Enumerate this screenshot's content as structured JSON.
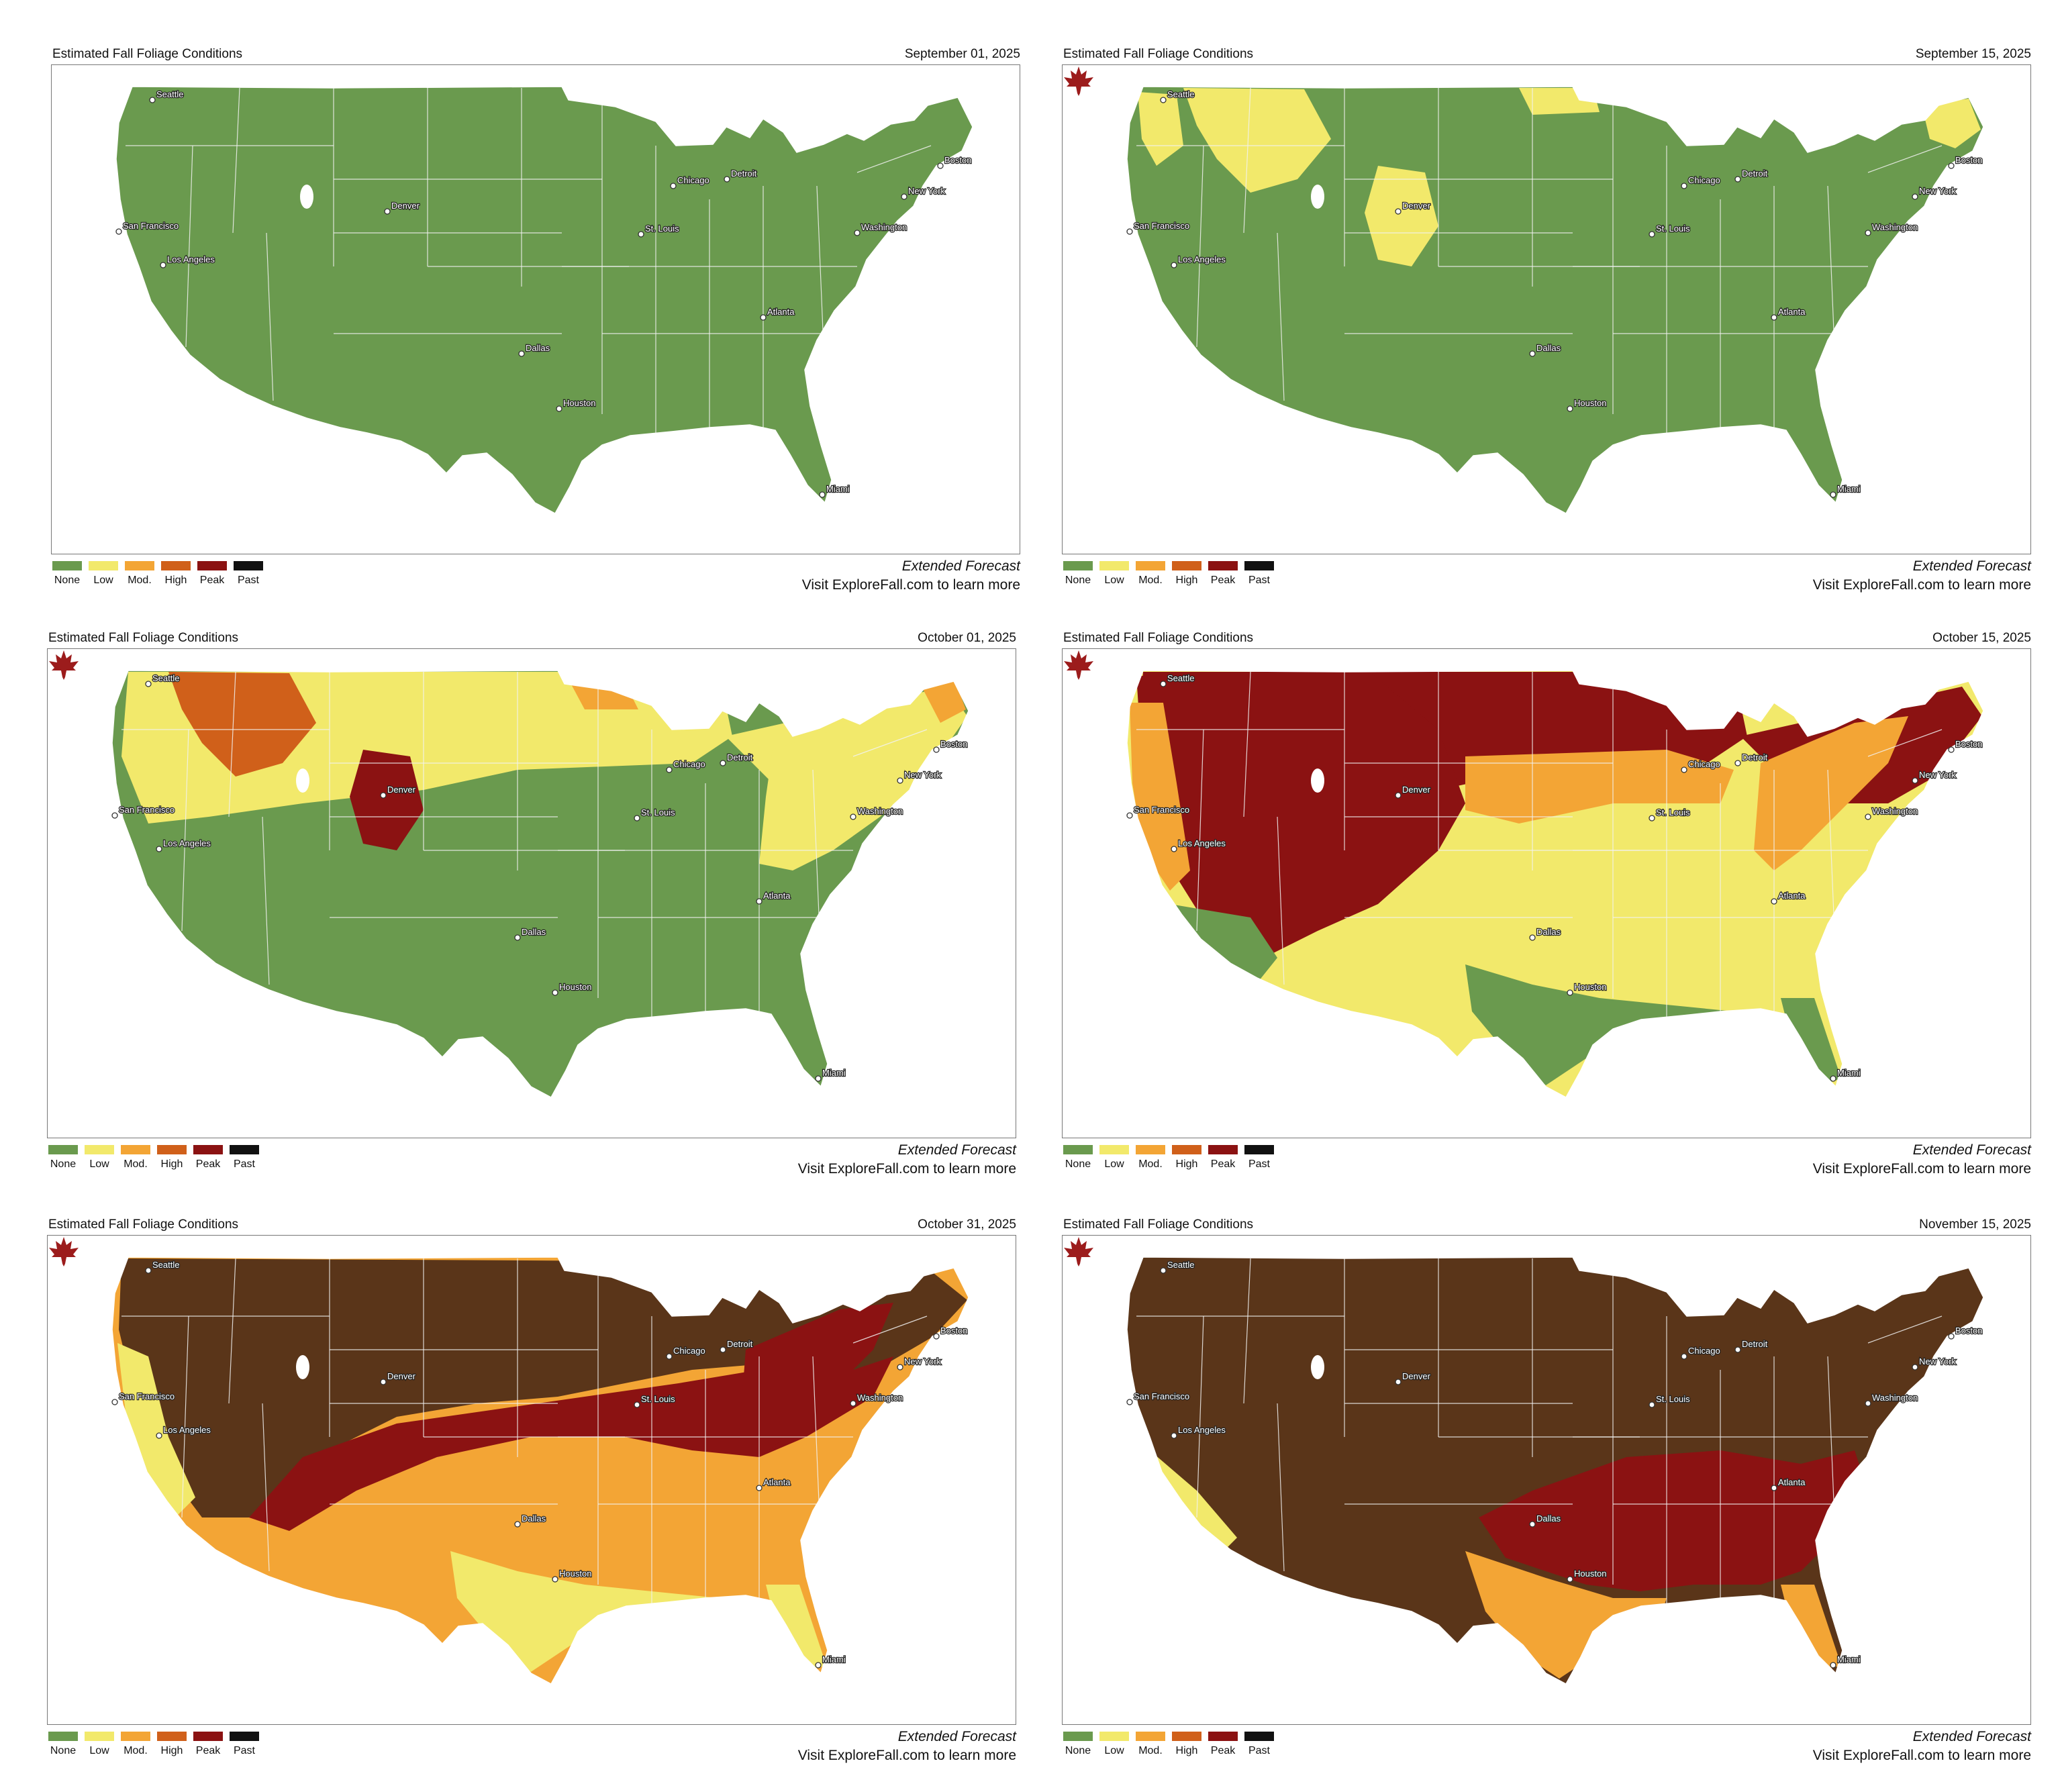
{
  "panel_title": "Estimated Fall Foliage Conditions",
  "footer": {
    "forecast": "Extended Forecast",
    "visit": "Visit ExploreFall.com to learn more"
  },
  "legend": [
    {
      "label": "None",
      "color": "#6a9a4e"
    },
    {
      "label": "Low",
      "color": "#f2e96b"
    },
    {
      "label": "Mod.",
      "color": "#f3a535"
    },
    {
      "label": "High",
      "color": "#d0601a"
    },
    {
      "label": "Peak",
      "color": "#8b1212"
    },
    {
      "label": "Past",
      "color": "#111111"
    }
  ],
  "map_colors": {
    "past_brown": "#5a3519",
    "state_border": "#f2f2f2",
    "great_salt_lake": "#ffffff",
    "logo": "#9c1c1c"
  },
  "cities": [
    {
      "name": "Seattle"
    },
    {
      "name": "San Francisco"
    },
    {
      "name": "Los Angeles"
    },
    {
      "name": "Denver"
    },
    {
      "name": "Dallas"
    },
    {
      "name": "Houston"
    },
    {
      "name": "St. Louis"
    },
    {
      "name": "Chicago"
    },
    {
      "name": "Detroit"
    },
    {
      "name": "Atlanta"
    },
    {
      "name": "Miami"
    },
    {
      "name": "Washington"
    },
    {
      "name": "New York"
    },
    {
      "name": "Boston"
    }
  ],
  "panels": [
    {
      "date": "September 01, 2025",
      "show_logo": false,
      "base": "None",
      "regions": []
    },
    {
      "date": "September 15, 2025",
      "show_logo": true,
      "base": "None",
      "regions": [
        {
          "area": "northern-rockies",
          "condition": "Low"
        },
        {
          "area": "colorado-rockies",
          "condition": "Low"
        },
        {
          "area": "cascades",
          "condition": "Low"
        },
        {
          "area": "northeast-maine",
          "condition": "Low"
        },
        {
          "area": "north-dakota-north",
          "condition": "Low"
        }
      ]
    },
    {
      "date": "October 01, 2025",
      "show_logo": true,
      "base": "None",
      "regions": [
        {
          "area": "north-tier",
          "condition": "Low"
        },
        {
          "area": "northern-rockies",
          "condition": "High"
        },
        {
          "area": "colorado-rockies",
          "condition": "Peak"
        },
        {
          "area": "northeast",
          "condition": "Low"
        },
        {
          "area": "minnesota-arrowhead",
          "condition": "Mod."
        },
        {
          "area": "maine-north",
          "condition": "Mod."
        }
      ]
    },
    {
      "date": "October 15, 2025",
      "show_logo": true,
      "base": "Low",
      "regions": [
        {
          "area": "north-tier",
          "condition": "Peak"
        },
        {
          "area": "rockies-west",
          "condition": "Peak"
        },
        {
          "area": "west-coast",
          "condition": "Mod."
        },
        {
          "area": "upper-midwest-band",
          "condition": "Mod."
        },
        {
          "area": "appalachians",
          "condition": "Mod."
        },
        {
          "area": "gulf-coast",
          "condition": "None"
        },
        {
          "area": "florida",
          "condition": "None"
        },
        {
          "area": "southwest-desert",
          "condition": "None"
        }
      ]
    },
    {
      "date": "October 31, 2025",
      "show_logo": true,
      "base": "Mod.",
      "regions": [
        {
          "area": "north-and-west",
          "condition": "Past"
        },
        {
          "area": "central-band",
          "condition": "Peak"
        },
        {
          "area": "appalachians",
          "condition": "Peak"
        },
        {
          "area": "gulf-coast",
          "condition": "Low"
        },
        {
          "area": "florida",
          "condition": "Low"
        },
        {
          "area": "california-coast",
          "condition": "Low"
        }
      ]
    },
    {
      "date": "November 15, 2025",
      "show_logo": true,
      "base": "Past",
      "regions": [
        {
          "area": "southeast",
          "condition": "Peak"
        },
        {
          "area": "texas-gulf",
          "condition": "Mod."
        },
        {
          "area": "florida",
          "condition": "Mod."
        },
        {
          "area": "california-south-coast",
          "condition": "Low"
        }
      ]
    }
  ]
}
